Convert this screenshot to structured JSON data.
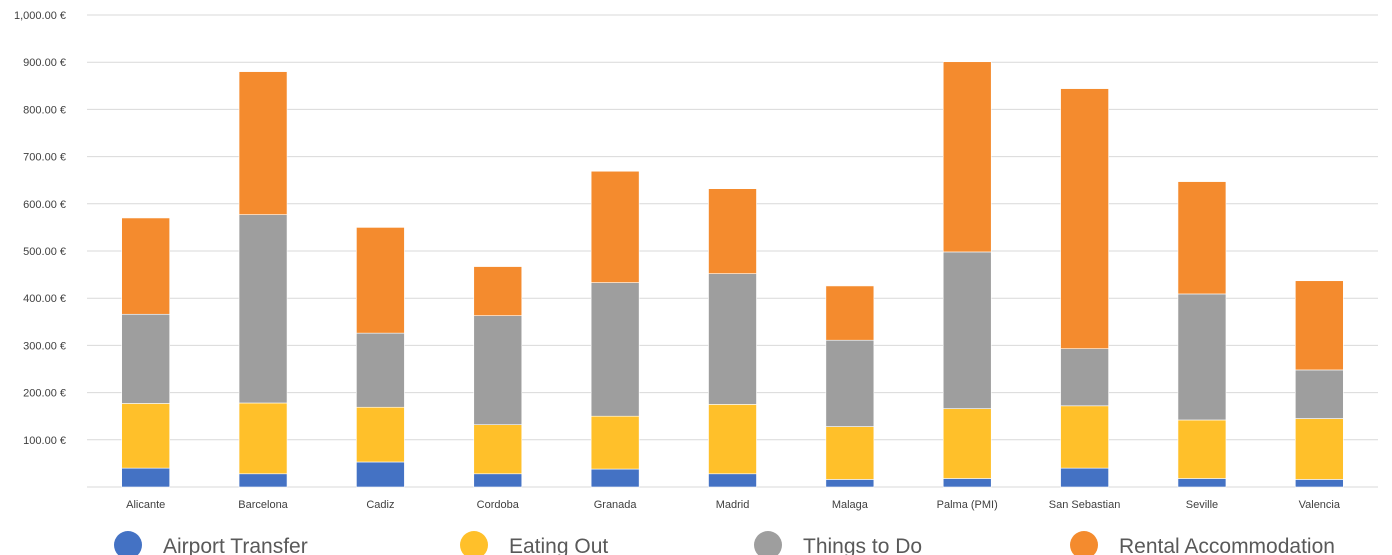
{
  "chart_data": {
    "type": "bar",
    "stacked": true,
    "categories": [
      "Alicante",
      "Barcelona",
      "Cadiz",
      "Cordoba",
      "Granada",
      "Madrid",
      "Malaga",
      "Palma (PMI)",
      "San Sebastian",
      "Seville",
      "Valencia"
    ],
    "series": [
      {
        "name": "Airport Transfer",
        "color": "#4472C4",
        "values": [
          40,
          28,
          53,
          28,
          38,
          28,
          16,
          18,
          40,
          18,
          16
        ]
      },
      {
        "name": "Eating Out",
        "color": "#FFC02A",
        "values": [
          137,
          150,
          116,
          104,
          112,
          147,
          112,
          148,
          132,
          124,
          129
        ]
      },
      {
        "name": "Things to Do",
        "color": "#9E9E9E",
        "values": [
          189,
          399,
          157,
          231,
          283,
          277,
          183,
          332,
          121,
          267,
          103
        ]
      },
      {
        "name": "Rental Accommodation",
        "color": "#F48B2E",
        "values": [
          204,
          303,
          224,
          104,
          236,
          180,
          115,
          403,
          551,
          238,
          189
        ]
      }
    ],
    "y_ticks": [
      "100.00 €",
      "200.00 €",
      "300.00 €",
      "400.00 €",
      "500.00 €",
      "600.00 €",
      "700.00 €",
      "800.00 €",
      "900.00 €",
      "1,000.00 €"
    ],
    "ylim": [
      0,
      1000
    ],
    "grid": true,
    "legend_position": "bottom",
    "title": "",
    "xlabel": "",
    "ylabel": ""
  }
}
